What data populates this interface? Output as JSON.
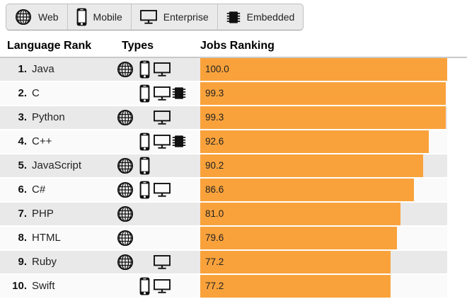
{
  "filter_bar": {
    "items": [
      {
        "type": "web",
        "label": "Web",
        "icon": "globe-icon"
      },
      {
        "type": "mobile",
        "label": "Mobile",
        "icon": "smartphone-icon"
      },
      {
        "type": "enterprise",
        "label": "Enterprise",
        "icon": "monitor-icon"
      },
      {
        "type": "embedded",
        "label": "Embedded",
        "icon": "chip-icon"
      }
    ]
  },
  "table": {
    "headers": [
      "Language Rank",
      "Types",
      "Jobs Ranking"
    ]
  },
  "chart_data": {
    "type": "bar",
    "title": "",
    "xlabel": "Jobs Ranking",
    "ylabel": "Language Rank",
    "xlim": [
      0,
      100
    ],
    "grid": false,
    "bar_color": "#F9A23B",
    "categories": [
      "Java",
      "C",
      "Python",
      "C++",
      "JavaScript",
      "C#",
      "PHP",
      "HTML",
      "Ruby",
      "Swift"
    ],
    "values": [
      100.0,
      99.3,
      99.3,
      92.6,
      90.2,
      86.6,
      81.0,
      79.6,
      77.2,
      77.2
    ],
    "rows": [
      {
        "rank": "1.",
        "language": "Java",
        "types": [
          "web",
          "mobile",
          "enterprise"
        ],
        "value": "100.0"
      },
      {
        "rank": "2.",
        "language": "C",
        "types": [
          "mobile",
          "enterprise",
          "embedded"
        ],
        "value": "99.3"
      },
      {
        "rank": "3.",
        "language": "Python",
        "types": [
          "web",
          "enterprise"
        ],
        "value": "99.3"
      },
      {
        "rank": "4.",
        "language": "C++",
        "types": [
          "mobile",
          "enterprise",
          "embedded"
        ],
        "value": "92.6"
      },
      {
        "rank": "5.",
        "language": "JavaScript",
        "types": [
          "web",
          "mobile"
        ],
        "value": "90.2"
      },
      {
        "rank": "6.",
        "language": "C#",
        "types": [
          "web",
          "mobile",
          "enterprise"
        ],
        "value": "86.6"
      },
      {
        "rank": "7.",
        "language": "PHP",
        "types": [
          "web"
        ],
        "value": "81.0"
      },
      {
        "rank": "8.",
        "language": "HTML",
        "types": [
          "web"
        ],
        "value": "79.6"
      },
      {
        "rank": "9.",
        "language": "Ruby",
        "types": [
          "web",
          "enterprise"
        ],
        "value": "77.2"
      },
      {
        "rank": "10.",
        "language": "Swift",
        "types": [
          "mobile",
          "enterprise"
        ],
        "value": "77.2"
      }
    ]
  },
  "colors": {
    "bar": "#F9A23B",
    "stripe_odd": "#e9e9e9",
    "stripe_even": "#fafafa",
    "filter_bg": "#eaeaea"
  }
}
